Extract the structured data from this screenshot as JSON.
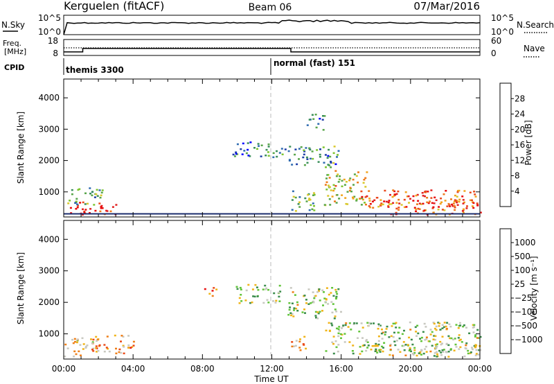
{
  "header": {
    "station": "Kerguelen (fitACF)",
    "beam": "Beam 06",
    "date": "07/Mar/2016"
  },
  "top_panels": {
    "nsky_label": "N.Sky",
    "nsky_ticks": [
      "10^5",
      "10^0"
    ],
    "nsearch_label": "N.Search",
    "nsearch_ticks": [
      "10^5",
      "10^0"
    ],
    "freq_label_1": "Freq.",
    "freq_label_2": "[MHz]",
    "freq_ticks": [
      "18",
      "8"
    ],
    "nave_label": "Nave",
    "nave_ticks": [
      "60",
      "0"
    ],
    "cpid_label": "CPID",
    "cpid_modes": [
      {
        "name": "themis 3300",
        "start_hour": 0
      },
      {
        "name": "normal (fast) 151",
        "start_hour": 12
      }
    ],
    "freq_steps": [
      {
        "from_hour": 0,
        "to_hour": 1.1,
        "mhz": 10.2
      },
      {
        "from_hour": 1.1,
        "to_hour": 13.1,
        "mhz": 12.4
      },
      {
        "from_hour": 13.1,
        "to_hour": 24,
        "mhz": 10.2
      }
    ]
  },
  "chart_data": [
    {
      "type": "heatmap",
      "name": "power",
      "ylabel": "Slant Range [km]",
      "yticks": [
        "4000",
        "3000",
        "2000",
        "1000"
      ],
      "ylim": [
        200,
        4600
      ],
      "xlim": [
        0,
        24
      ],
      "colorbar_label": "Power [dB]",
      "colorbar_ticks": [
        "28",
        "24",
        "20",
        "16",
        "12",
        "8",
        "4"
      ],
      "colorbar_colors": [
        "#0000ff",
        "#1f3fa8",
        "#2f6bb0",
        "#3a8f5a",
        "#58a54a",
        "#7dc42f",
        "#d9c82c",
        "#f2a31c",
        "#ee7a1a",
        "#ea4a1c",
        "#e22121",
        "#e80a0a"
      ],
      "ground_scatter_line_km": 300,
      "echo_regions": [
        {
          "x": [
            0.0,
            3.0
          ],
          "y": [
            300,
            700
          ],
          "level": 0.9
        },
        {
          "x": [
            0.2,
            2.2
          ],
          "y": [
            600,
            1200
          ],
          "level": 0.35
        },
        {
          "x": [
            9.7,
            11.8
          ],
          "y": [
            2150,
            2650
          ],
          "level": 0.25
        },
        {
          "x": [
            11.7,
            12.8
          ],
          "y": [
            2100,
            2450
          ],
          "level": 0.25
        },
        {
          "x": [
            12.9,
            15.8
          ],
          "y": [
            1800,
            2500
          ],
          "level": 0.3
        },
        {
          "x": [
            14.0,
            15.0
          ],
          "y": [
            3000,
            3500
          ],
          "level": 0.2
        },
        {
          "x": [
            13.0,
            14.5
          ],
          "y": [
            400,
            1100
          ],
          "level": 0.35
        },
        {
          "x": [
            15.0,
            17.5
          ],
          "y": [
            600,
            1700
          ],
          "level": 0.55
        },
        {
          "x": [
            17.0,
            24.0
          ],
          "y": [
            500,
            1100
          ],
          "level": 0.8
        },
        {
          "x": [
            18.0,
            24.0
          ],
          "y": [
            300,
            700
          ],
          "level": 0.75
        }
      ]
    },
    {
      "type": "heatmap",
      "name": "velocity",
      "ylabel": "Slant Range [km]",
      "yticks": [
        "4000",
        "3000",
        "2000",
        "1000"
      ],
      "ylim": [
        200,
        4600
      ],
      "xlim": [
        0,
        24
      ],
      "xticks": [
        "00:00",
        "04:00",
        "08:00",
        "12:00",
        "16:00",
        "20:00",
        "00:00"
      ],
      "xlabel": "Time UT",
      "colorbar_label": "Velocity [m s⁻¹]",
      "colorbar_ticks": [
        "1000",
        "500",
        "100",
        "25",
        "−25",
        "−100",
        "−500",
        "−1000"
      ],
      "colorbar_colors": [
        "#1c2fd8",
        "#2d66b3",
        "#3a8c4b",
        "#62c43a",
        "#c8c8c0",
        "#f0b418",
        "#ef7f18",
        "#ea4a18",
        "#e81010"
      ],
      "echo_regions": [
        {
          "x": [
            0.0,
            2.0
          ],
          "y": [
            300,
            900
          ],
          "level": 0.6
        },
        {
          "x": [
            1.5,
            4.0
          ],
          "y": [
            400,
            1000
          ],
          "level": 0.7
        },
        {
          "x": [
            8.0,
            8.8
          ],
          "y": [
            2200,
            2500
          ],
          "level": 0.85
        },
        {
          "x": [
            9.8,
            12.5
          ],
          "y": [
            2000,
            2600
          ],
          "level": 0.45
        },
        {
          "x": [
            12.9,
            16.0
          ],
          "y": [
            1500,
            2500
          ],
          "level": 0.45
        },
        {
          "x": [
            13.0,
            14.0
          ],
          "y": [
            500,
            1000
          ],
          "level": 0.7
        },
        {
          "x": [
            15.0,
            24.0
          ],
          "y": [
            400,
            1400
          ],
          "level": 0.45
        },
        {
          "x": [
            17.0,
            24.0
          ],
          "y": [
            300,
            700
          ],
          "level": 0.5
        }
      ]
    }
  ]
}
